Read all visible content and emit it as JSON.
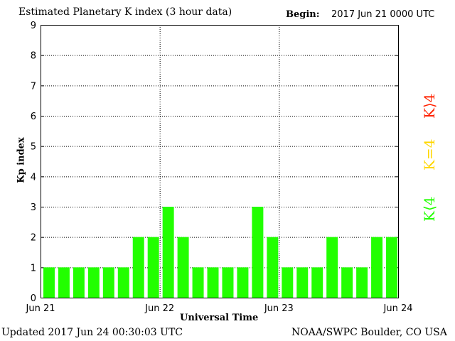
{
  "chart_data": {
    "type": "bar",
    "title": "Estimated Planetary K index (3 hour data)",
    "begin_label": "Begin:",
    "begin_value": "2017 Jun 21 0000 UTC",
    "xlabel": "Universal Time",
    "ylabel": "Kp index",
    "ylim": [
      0,
      9
    ],
    "yticks": [
      "0",
      "1",
      "2",
      "3",
      "4",
      "5",
      "6",
      "7",
      "8",
      "9"
    ],
    "xticks": [
      "Jun 21",
      "Jun 22",
      "Jun 23",
      "Jun 24"
    ],
    "values": [
      1,
      1,
      1,
      1,
      1,
      1,
      2,
      2,
      3,
      2,
      1,
      1,
      1,
      1,
      3,
      2,
      1,
      1,
      1,
      2,
      1,
      1,
      2,
      2
    ],
    "grid": true,
    "colors": {
      "low": "#22ff00",
      "mid": "#ffd700",
      "high": "#ff2200"
    },
    "legend": [
      {
        "label": "K⟨4",
        "color": "#22ff00"
      },
      {
        "label": "K=4",
        "color": "#ffd700"
      },
      {
        "label": "K⟩4",
        "color": "#ff2200"
      }
    ]
  },
  "footer": {
    "updated": "Updated 2017 Jun 24 00:30:03 UTC",
    "source": "NOAA/SWPC Boulder, CO USA"
  }
}
